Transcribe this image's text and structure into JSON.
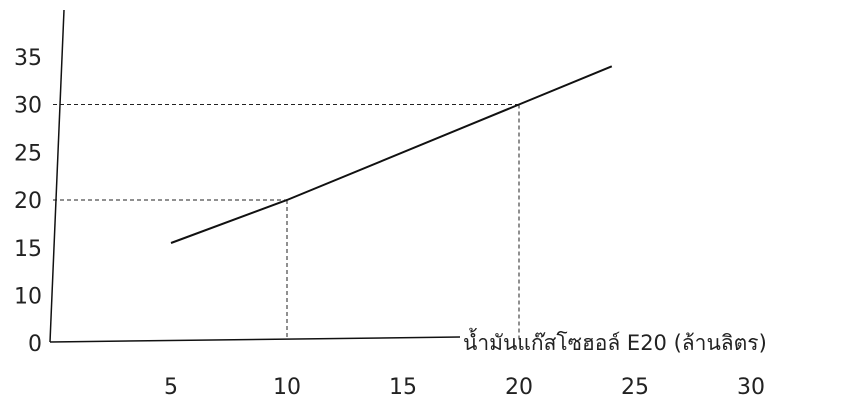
{
  "chart_data": {
    "type": "line",
    "title": "",
    "xlabel": "น้ำมันแก๊สโซฮอล์ E20 (ล้านลิตร)",
    "ylabel": "",
    "x_ticks": [
      "5",
      "10",
      "15",
      "20",
      "25",
      "30"
    ],
    "y_ticks": [
      "0",
      "10",
      "15",
      "20",
      "25",
      "30",
      "35"
    ],
    "series": [
      {
        "x": [
          5,
          10,
          20,
          24
        ],
        "y": [
          15.5,
          20,
          30,
          34
        ]
      }
    ],
    "reference_lines": [
      {
        "x": 10,
        "y": 20
      },
      {
        "x": 20,
        "y": 30
      }
    ],
    "grid": false
  }
}
